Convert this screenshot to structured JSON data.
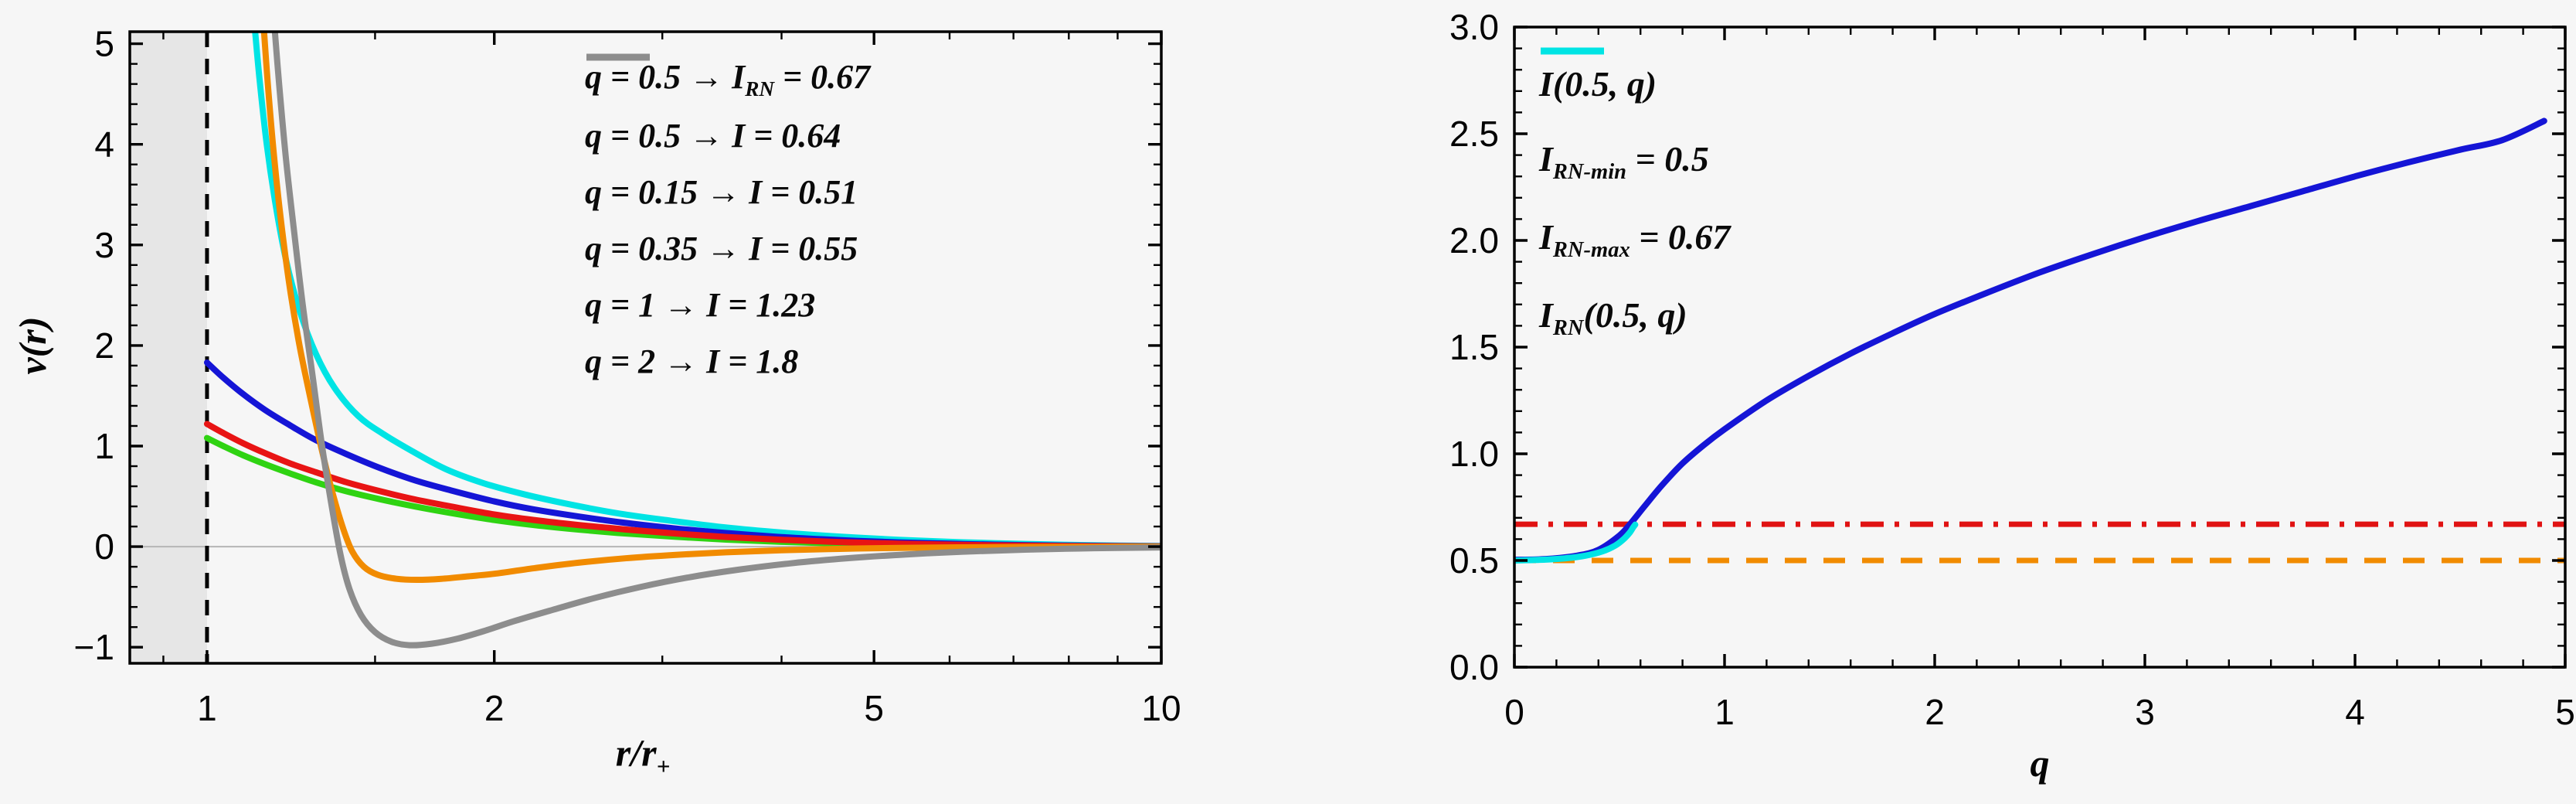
{
  "figure": {
    "background": "#f6f6f6",
    "frame_color": "#000000",
    "tick_label_color": "#000000"
  },
  "chart_data": [
    {
      "id": "left",
      "type": "line",
      "xscale": "log",
      "xlim": [
        0.83,
        10
      ],
      "ylim": [
        -1.16,
        5.12
      ],
      "grid": "zero-line-only",
      "xlabel": {
        "pre": "r/r",
        "sub": "+"
      },
      "ylabel": {
        "pre": "v(r)",
        "sub": ""
      },
      "x_ticks": {
        "majors": [
          {
            "v": 1,
            "label": "1"
          },
          {
            "v": 2,
            "label": "2"
          },
          {
            "v": 5,
            "label": "5"
          },
          {
            "v": 10,
            "label": "10"
          }
        ],
        "minor_values": [
          0.9,
          1.5,
          3,
          4,
          6,
          7,
          8,
          9
        ]
      },
      "y_ticks": {
        "majors": [
          {
            "v": -1,
            "label": "−1"
          },
          {
            "v": 0,
            "label": "0"
          },
          {
            "v": 1,
            "label": "1"
          },
          {
            "v": 2,
            "label": "2"
          },
          {
            "v": 3,
            "label": "3"
          },
          {
            "v": 4,
            "label": "4"
          },
          {
            "v": 5,
            "label": "5"
          }
        ],
        "minor_step": 0.2
      },
      "shade_region": {
        "x1": 0.83,
        "x2": 1,
        "color": "#e6e6e6"
      },
      "zero_line": {
        "y": 0,
        "color": "#b5b5b5",
        "width": 2
      },
      "vline": {
        "x": 1,
        "color": "#000000",
        "dash": [
          20,
          15
        ],
        "width": 5
      },
      "legend_position": "top-right-inside",
      "series": [
        {
          "key": "rn-q05",
          "color": "#00e4e4",
          "width": 8,
          "dash": null,
          "label": {
            "pre": "q = 0.5 → I",
            "sub": "RN",
            "post": " = 0.67"
          },
          "points": [
            [
              1.12,
              5.25
            ],
            [
              1.135,
              4.65
            ],
            [
              1.155,
              4.0
            ],
            [
              1.18,
              3.4
            ],
            [
              1.21,
              2.85
            ],
            [
              1.25,
              2.35
            ],
            [
              1.3,
              1.92
            ],
            [
              1.36,
              1.58
            ],
            [
              1.44,
              1.3
            ],
            [
              1.53,
              1.12
            ],
            [
              1.64,
              0.95
            ],
            [
              1.78,
              0.77
            ],
            [
              1.95,
              0.63
            ],
            [
              2.15,
              0.52
            ],
            [
              2.4,
              0.42
            ],
            [
              2.7,
              0.33
            ],
            [
              3.05,
              0.26
            ],
            [
              3.5,
              0.19
            ],
            [
              4.0,
              0.14
            ],
            [
              4.6,
              0.1
            ],
            [
              5.3,
              0.068
            ],
            [
              6.2,
              0.043
            ],
            [
              7.3,
              0.026
            ],
            [
              8.5,
              0.014
            ],
            [
              10,
              0.006
            ]
          ]
        },
        {
          "key": "q05",
          "color": "#1515d6",
          "width": 8,
          "dash": null,
          "label": {
            "pre": "q = 0.5 → I",
            "sub": "",
            "post": " = 0.64"
          },
          "points": [
            [
              1.0,
              1.83
            ],
            [
              1.04,
              1.68
            ],
            [
              1.09,
              1.52
            ],
            [
              1.15,
              1.36
            ],
            [
              1.22,
              1.21
            ],
            [
              1.3,
              1.06
            ],
            [
              1.4,
              0.92
            ],
            [
              1.52,
              0.78
            ],
            [
              1.65,
              0.66
            ],
            [
              1.8,
              0.56
            ],
            [
              2.0,
              0.45
            ],
            [
              2.2,
              0.37
            ],
            [
              2.45,
              0.3
            ],
            [
              2.75,
              0.235
            ],
            [
              3.1,
              0.18
            ],
            [
              3.5,
              0.135
            ],
            [
              4.0,
              0.095
            ],
            [
              4.6,
              0.065
            ],
            [
              5.3,
              0.042
            ],
            [
              6.2,
              0.026
            ],
            [
              7.3,
              0.014
            ],
            [
              8.5,
              0.008
            ],
            [
              10,
              0.004
            ]
          ]
        },
        {
          "key": "q015",
          "color": "#2fd312",
          "width": 8,
          "dash": null,
          "label": {
            "pre": "q = 0.15 → I",
            "sub": "",
            "post": " = 0.51"
          },
          "points": [
            [
              1.0,
              1.08
            ],
            [
              1.04,
              1.0
            ],
            [
              1.09,
              0.91
            ],
            [
              1.15,
              0.82
            ],
            [
              1.22,
              0.73
            ],
            [
              1.3,
              0.64
            ],
            [
              1.4,
              0.55
            ],
            [
              1.52,
              0.47
            ],
            [
              1.65,
              0.4
            ],
            [
              1.8,
              0.335
            ],
            [
              2.0,
              0.265
            ],
            [
              2.2,
              0.215
            ],
            [
              2.45,
              0.17
            ],
            [
              2.75,
              0.13
            ],
            [
              3.1,
              0.098
            ],
            [
              3.5,
              0.07
            ],
            [
              4.0,
              0.048
            ],
            [
              4.6,
              0.031
            ],
            [
              5.3,
              0.019
            ],
            [
              6.2,
              0.011
            ],
            [
              7.3,
              0.005
            ],
            [
              8.5,
              0.002
            ],
            [
              10,
              0.001
            ]
          ]
        },
        {
          "key": "q035",
          "color": "#e81414",
          "width": 8,
          "dash": null,
          "label": {
            "pre": "q = 0.35 → I",
            "sub": "",
            "post": " = 0.55"
          },
          "points": [
            [
              1.0,
              1.22
            ],
            [
              1.04,
              1.13
            ],
            [
              1.09,
              1.03
            ],
            [
              1.15,
              0.93
            ],
            [
              1.22,
              0.83
            ],
            [
              1.3,
              0.74
            ],
            [
              1.4,
              0.64
            ],
            [
              1.52,
              0.55
            ],
            [
              1.65,
              0.47
            ],
            [
              1.8,
              0.4
            ],
            [
              2.0,
              0.32
            ],
            [
              2.2,
              0.265
            ],
            [
              2.45,
              0.215
            ],
            [
              2.75,
              0.17
            ],
            [
              3.1,
              0.13
            ],
            [
              3.5,
              0.096
            ],
            [
              4.0,
              0.068
            ],
            [
              4.6,
              0.046
            ],
            [
              5.3,
              0.03
            ],
            [
              6.2,
              0.018
            ],
            [
              7.3,
              0.009
            ],
            [
              8.5,
              0.005
            ],
            [
              10,
              0.002
            ]
          ]
        },
        {
          "key": "q1",
          "color": "#f18b00",
          "width": 8,
          "dash": null,
          "label": {
            "pre": "q = 1 → I",
            "sub": "",
            "post": " = 1.23"
          },
          "points": [
            [
              1.145,
              5.25
            ],
            [
              1.158,
              4.6
            ],
            [
              1.175,
              3.9
            ],
            [
              1.195,
              3.25
            ],
            [
              1.22,
              2.6
            ],
            [
              1.25,
              2.0
            ],
            [
              1.285,
              1.45
            ],
            [
              1.32,
              0.95
            ],
            [
              1.355,
              0.52
            ],
            [
              1.39,
              0.17
            ],
            [
              1.42,
              -0.05
            ],
            [
              1.46,
              -0.2
            ],
            [
              1.51,
              -0.28
            ],
            [
              1.58,
              -0.32
            ],
            [
              1.66,
              -0.33
            ],
            [
              1.76,
              -0.32
            ],
            [
              1.88,
              -0.295
            ],
            [
              2.0,
              -0.27
            ],
            [
              2.2,
              -0.215
            ],
            [
              2.45,
              -0.16
            ],
            [
              2.75,
              -0.115
            ],
            [
              3.1,
              -0.082
            ],
            [
              3.5,
              -0.056
            ],
            [
              4.0,
              -0.036
            ],
            [
              4.6,
              -0.022
            ],
            [
              5.3,
              -0.013
            ],
            [
              6.2,
              -0.007
            ],
            [
              7.3,
              -0.003
            ],
            [
              8.5,
              -0.001
            ],
            [
              10,
              0
            ]
          ]
        },
        {
          "key": "q2",
          "color": "#8d8d8d",
          "width": 8,
          "dash": null,
          "label": {
            "pre": "q = 2 → I",
            "sub": "",
            "post": " = 1.8"
          },
          "points": [
            [
              1.175,
              5.25
            ],
            [
              1.19,
              4.6
            ],
            [
              1.21,
              3.85
            ],
            [
              1.235,
              3.1
            ],
            [
              1.26,
              2.4
            ],
            [
              1.29,
              1.7
            ],
            [
              1.32,
              1.0
            ],
            [
              1.35,
              0.42
            ],
            [
              1.38,
              -0.08
            ],
            [
              1.41,
              -0.42
            ],
            [
              1.45,
              -0.68
            ],
            [
              1.5,
              -0.85
            ],
            [
              1.56,
              -0.945
            ],
            [
              1.63,
              -0.98
            ],
            [
              1.72,
              -0.965
            ],
            [
              1.83,
              -0.915
            ],
            [
              1.95,
              -0.84
            ],
            [
              2.1,
              -0.74
            ],
            [
              2.3,
              -0.63
            ],
            [
              2.55,
              -0.51
            ],
            [
              2.85,
              -0.4
            ],
            [
              3.2,
              -0.305
            ],
            [
              3.6,
              -0.23
            ],
            [
              4.1,
              -0.165
            ],
            [
              4.7,
              -0.115
            ],
            [
              5.4,
              -0.078
            ],
            [
              6.2,
              -0.05
            ],
            [
              7.2,
              -0.03
            ],
            [
              8.5,
              -0.016
            ],
            [
              10,
              -0.008
            ]
          ]
        }
      ]
    },
    {
      "id": "right",
      "type": "line",
      "xscale": "linear",
      "xlim": [
        0,
        5
      ],
      "ylim": [
        0,
        3
      ],
      "grid": "off",
      "xlabel": {
        "pre": "q",
        "sub": ""
      },
      "ylabel": {
        "pre": "",
        "sub": ""
      },
      "x_ticks": {
        "majors": [
          {
            "v": 0,
            "label": "0"
          },
          {
            "v": 1,
            "label": "1"
          },
          {
            "v": 2,
            "label": "2"
          },
          {
            "v": 3,
            "label": "3"
          },
          {
            "v": 4,
            "label": "4"
          },
          {
            "v": 5,
            "label": "5"
          }
        ],
        "minor_step": 0.2
      },
      "y_ticks": {
        "majors": [
          {
            "v": 0,
            "label": "0.0"
          },
          {
            "v": 0.5,
            "label": "0.5"
          },
          {
            "v": 1,
            "label": "1.0"
          },
          {
            "v": 1.5,
            "label": "1.5"
          },
          {
            "v": 2,
            "label": "2.0"
          },
          {
            "v": 2.5,
            "label": "2.5"
          },
          {
            "v": 3,
            "label": "3.0"
          }
        ],
        "minor_step": 0.1
      },
      "legend_position": "top-left-inside",
      "draw_order": [
        "rn-min",
        "rn-max",
        "I",
        "I-rn"
      ],
      "series": [
        {
          "key": "I",
          "color": "#1515d6",
          "width": 8,
          "dash": null,
          "label": {
            "pre": "I",
            "sub": "",
            "post": "(0.5, q)"
          },
          "points": [
            [
              0,
              0.503
            ],
            [
              0.15,
              0.507
            ],
            [
              0.3,
              0.523
            ],
            [
              0.4,
              0.55
            ],
            [
              0.5,
              0.617
            ],
            [
              0.55,
              0.67
            ],
            [
              0.62,
              0.755
            ],
            [
              0.7,
              0.85
            ],
            [
              0.8,
              0.955
            ],
            [
              0.9,
              1.04
            ],
            [
              1.0,
              1.115
            ],
            [
              1.2,
              1.25
            ],
            [
              1.4,
              1.365
            ],
            [
              1.6,
              1.47
            ],
            [
              1.8,
              1.565
            ],
            [
              2.0,
              1.655
            ],
            [
              2.25,
              1.755
            ],
            [
              2.5,
              1.85
            ],
            [
              2.75,
              1.935
            ],
            [
              3.0,
              2.015
            ],
            [
              3.25,
              2.09
            ],
            [
              3.5,
              2.16
            ],
            [
              3.75,
              2.23
            ],
            [
              4.0,
              2.3
            ],
            [
              4.25,
              2.365
            ],
            [
              4.5,
              2.425
            ],
            [
              4.7,
              2.47
            ],
            [
              4.9,
              2.56
            ]
          ]
        },
        {
          "key": "rn-min",
          "type": "hline",
          "y": 0.5,
          "color": "#f18b00",
          "width": 7,
          "dash": [
            28,
            22
          ],
          "label": {
            "pre": "I",
            "sub": "RN-min",
            "post": " = 0.5"
          }
        },
        {
          "key": "rn-max",
          "type": "hline",
          "y": 0.67,
          "color": "#e01313",
          "width": 7,
          "dash": [
            30,
            14,
            6,
            14
          ],
          "label": {
            "pre": "I",
            "sub": "RN-max",
            "post": " = 0.67"
          }
        },
        {
          "key": "I-rn",
          "color": "#00e4e4",
          "width": 8,
          "dash": null,
          "label": {
            "pre": "I",
            "sub": "RN",
            "post": "(0.5, q)"
          },
          "points": [
            [
              0,
              0.5
            ],
            [
              0.12,
              0.503
            ],
            [
              0.24,
              0.51
            ],
            [
              0.34,
              0.523
            ],
            [
              0.42,
              0.543
            ],
            [
              0.48,
              0.57
            ],
            [
              0.52,
              0.6
            ],
            [
              0.55,
              0.632
            ],
            [
              0.565,
              0.655
            ],
            [
              0.575,
              0.668
            ]
          ]
        }
      ]
    }
  ]
}
